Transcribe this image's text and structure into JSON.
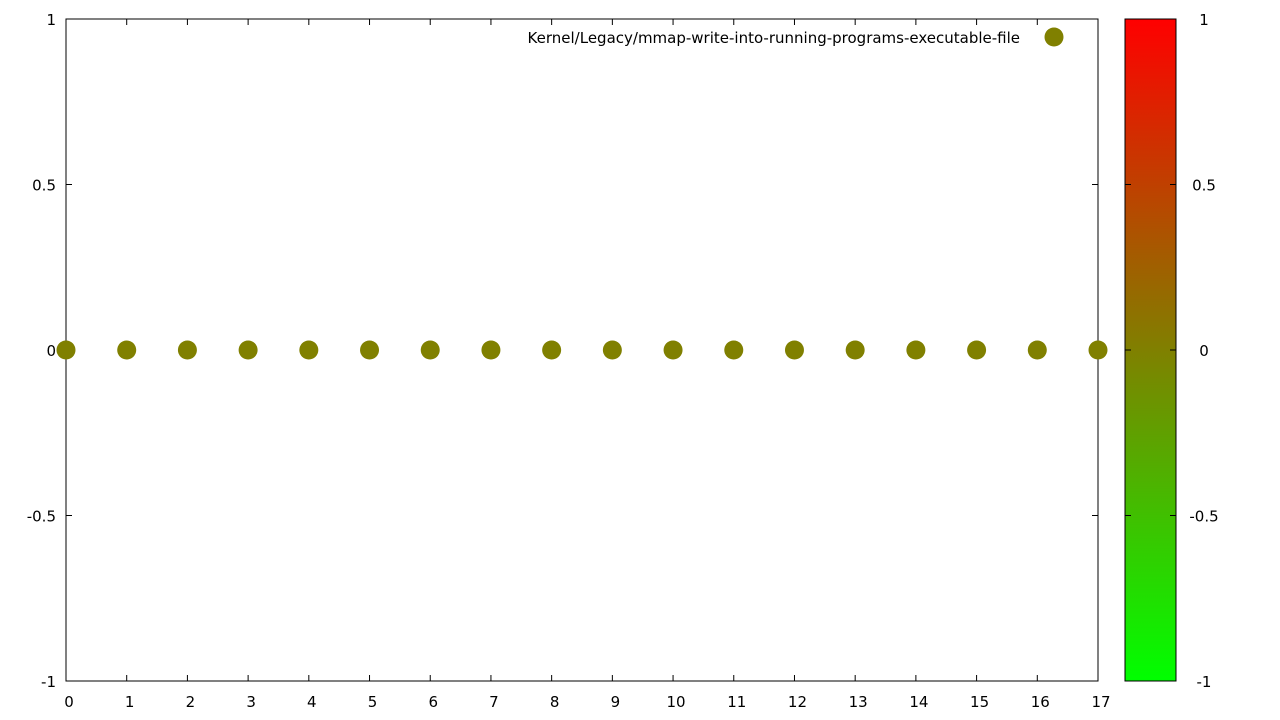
{
  "chart_data": {
    "type": "scatter",
    "title": "",
    "xlabel": "",
    "ylabel": "",
    "xlim": [
      0,
      17
    ],
    "ylim": [
      -1,
      1
    ],
    "x_ticks": [
      "0",
      "1",
      "2",
      "3",
      "4",
      "5",
      "6",
      "7",
      "8",
      "9",
      "10",
      "11",
      "12",
      "13",
      "14",
      "15",
      "16",
      "17"
    ],
    "y_ticks": [
      "-1",
      "-0.5",
      "0",
      "0.5",
      "1"
    ],
    "grid": false,
    "legend_position": "top-right",
    "series": [
      {
        "name": "Kernel/Legacy/mmap-write-into-running-programs-executable-file",
        "color": "#808000",
        "x": [
          0,
          1,
          2,
          3,
          4,
          5,
          6,
          7,
          8,
          9,
          10,
          11,
          12,
          13,
          14,
          15,
          16,
          17
        ],
        "y": [
          0,
          0,
          0,
          0,
          0,
          0,
          0,
          0,
          0,
          0,
          0,
          0,
          0,
          0,
          0,
          0,
          0,
          0
        ]
      }
    ],
    "colorbar": {
      "range": [
        -1,
        1
      ],
      "ticks": [
        "-1",
        "-0.5",
        "0",
        "0.5",
        "1"
      ],
      "colors": [
        "#00ff00",
        "#808000",
        "#ff0000"
      ]
    }
  }
}
